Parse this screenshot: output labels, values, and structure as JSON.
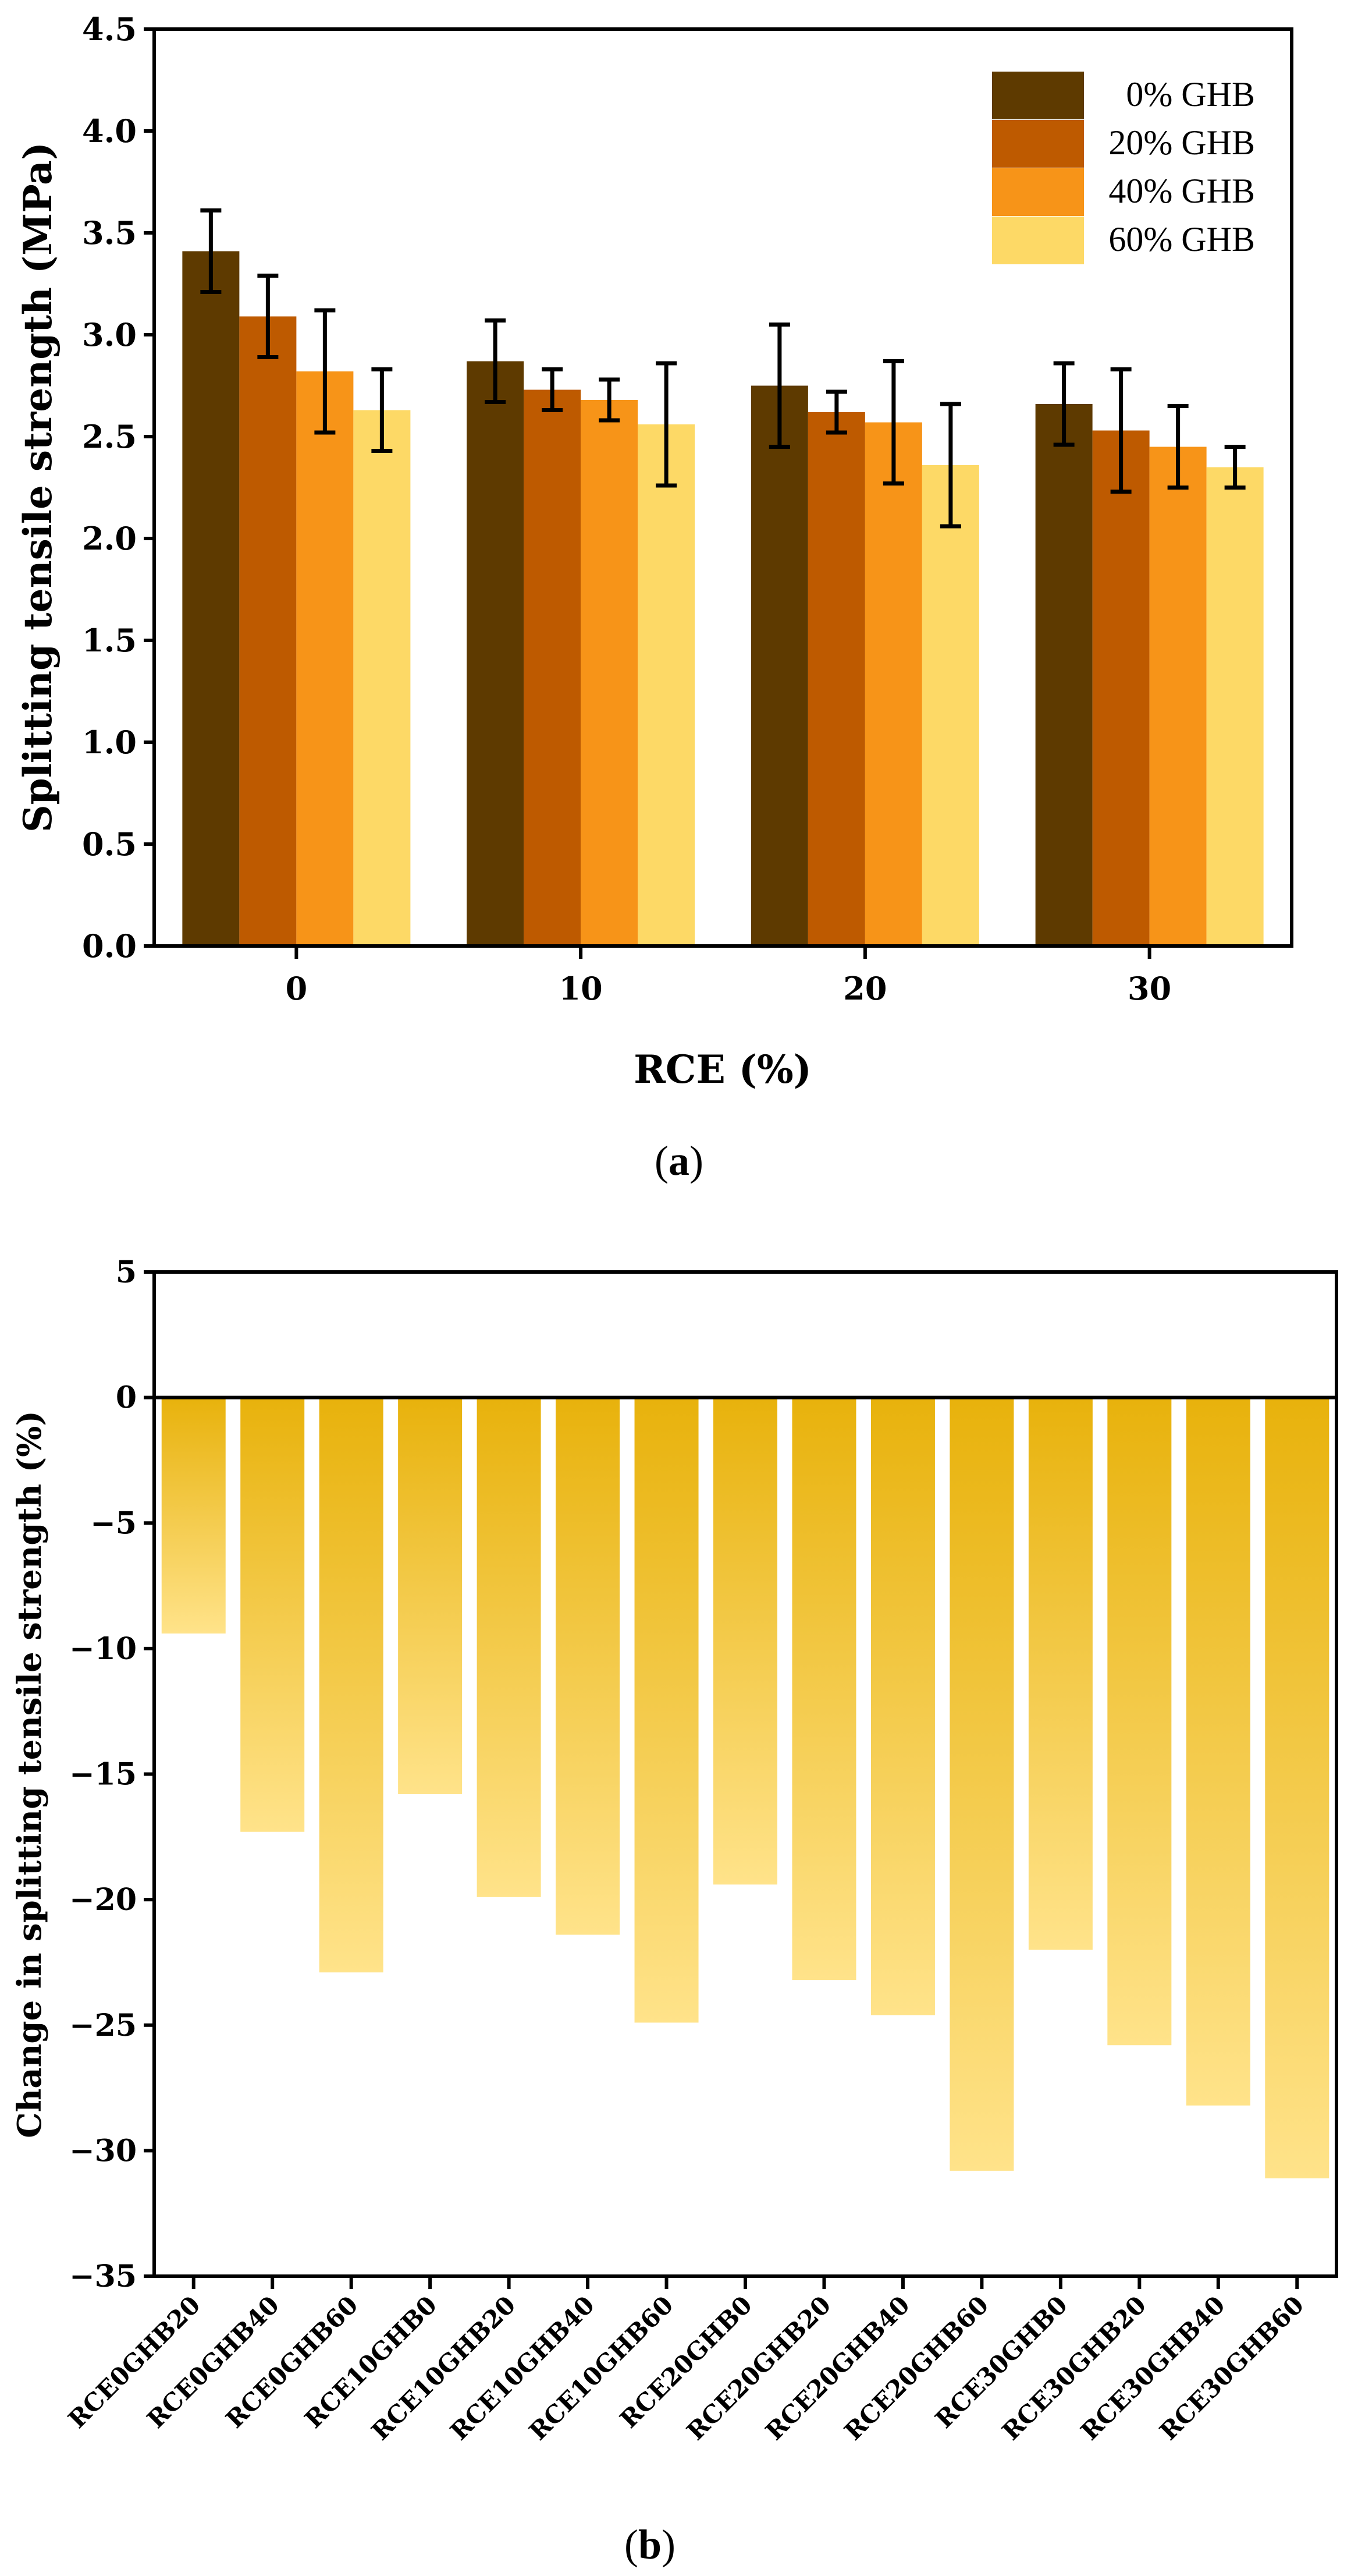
{
  "chart_data": [
    {
      "type": "bar",
      "title": "",
      "xlabel": "RCE (%)",
      "ylabel": "Splitting tensile strength (MPa)",
      "categories": [
        "0",
        "10",
        "20",
        "30"
      ],
      "ylim": [
        0.0,
        4.5
      ],
      "yticks": [
        "0.0",
        "0.5",
        "1.0",
        "1.5",
        "2.0",
        "2.5",
        "3.0",
        "3.5",
        "4.0",
        "4.5"
      ],
      "legend_position": "top-right",
      "series": [
        {
          "name": "0% GHB",
          "color": "#5E3A00",
          "values": [
            3.41,
            2.87,
            2.75,
            2.66
          ],
          "errors": [
            0.2,
            0.2,
            0.3,
            0.2
          ]
        },
        {
          "name": "20% GHB",
          "color": "#BE5A00",
          "values": [
            3.09,
            2.73,
            2.62,
            2.53
          ],
          "errors": [
            0.2,
            0.1,
            0.1,
            0.3
          ]
        },
        {
          "name": "40% GHB",
          "color": "#F79418",
          "values": [
            2.82,
            2.68,
            2.57,
            2.45
          ],
          "errors": [
            0.3,
            0.1,
            0.3,
            0.2
          ]
        },
        {
          "name": "60% GHB",
          "color": "#FDD966",
          "values": [
            2.63,
            2.56,
            2.36,
            2.35
          ],
          "errors": [
            0.2,
            0.3,
            0.3,
            0.1
          ]
        }
      ],
      "caption": {
        "prefix": "(",
        "letter": "a",
        "suffix": ")"
      }
    },
    {
      "type": "bar",
      "title": "",
      "xlabel": "",
      "ylabel": "Change in splitting tensile strength (%)",
      "categories": [
        "RCE0GHB20",
        "RCE0GHB40",
        "RCE0GHB60",
        "RCE10GHB0",
        "RCE10GHB20",
        "RCE10GHB40",
        "RCE10GHB60",
        "RCE20GHB0",
        "RCE20GHB20",
        "RCE20GHB40",
        "RCE20GHB60",
        "RCE30GHB0",
        "RCE30GHB20",
        "RCE30GHB40",
        "RCE30GHB60"
      ],
      "values": [
        -9.4,
        -17.3,
        -22.9,
        -15.8,
        -19.9,
        -21.4,
        -24.9,
        -19.4,
        -23.2,
        -24.6,
        -30.8,
        -22.0,
        -25.8,
        -28.2,
        -31.1
      ],
      "ylim": [
        -35,
        5
      ],
      "yticks": [
        "5",
        "0",
        "−5",
        "−10",
        "−15",
        "−20",
        "−25",
        "−30",
        "−35"
      ],
      "gradient": {
        "top": "#E8B20C",
        "bottom": "#FFE38A"
      },
      "caption": {
        "prefix": "(",
        "letter": "b",
        "suffix": ")"
      }
    }
  ]
}
